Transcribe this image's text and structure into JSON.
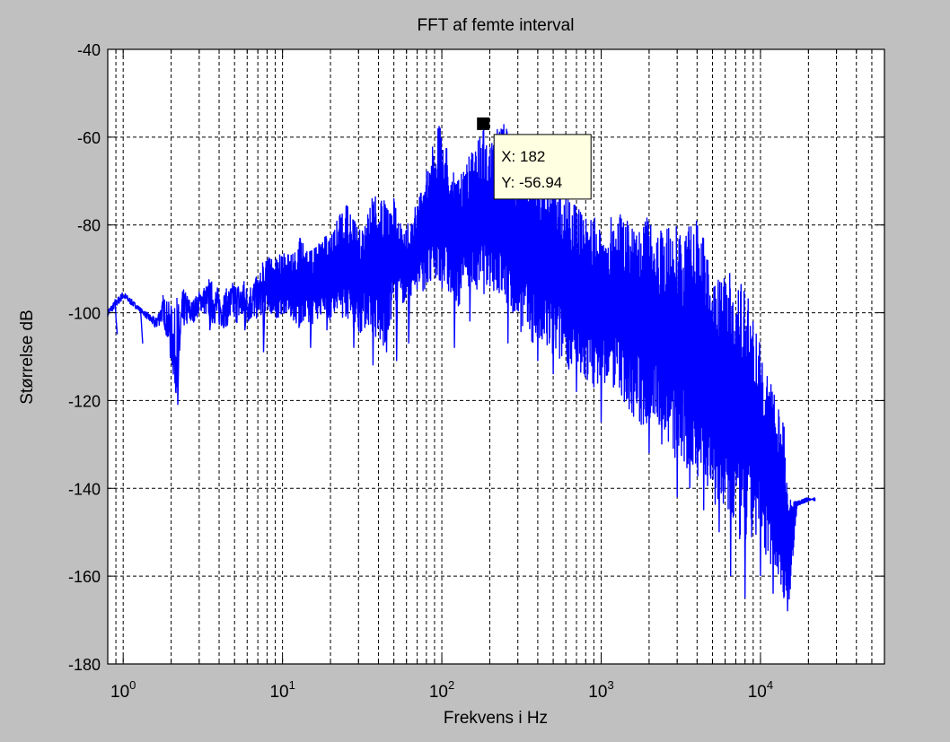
{
  "chart_data": {
    "type": "line",
    "title": "FFT af femte interval",
    "xlabel": "Frekvens i Hz",
    "ylabel": "Størrelse dB",
    "xscale": "log",
    "xlim": [
      0.8,
      60000
    ],
    "ylim": [
      -180,
      -40
    ],
    "grid": true,
    "line_color": "#0000ff",
    "x_ticks": [
      {
        "value": 1,
        "base": "10",
        "exp": "0"
      },
      {
        "value": 10,
        "base": "10",
        "exp": "1"
      },
      {
        "value": 100,
        "base": "10",
        "exp": "2"
      },
      {
        "value": 1000,
        "base": "10",
        "exp": "3"
      },
      {
        "value": 10000,
        "base": "10",
        "exp": "4"
      }
    ],
    "y_ticks": [
      -40,
      -60,
      -80,
      -100,
      -120,
      -140,
      -160,
      -180
    ],
    "series": [
      {
        "upper": [
          [
            0.8,
            -99
          ],
          [
            1.0,
            -95
          ],
          [
            1.3,
            -99
          ],
          [
            1.6,
            -101
          ],
          [
            1.8,
            -96
          ],
          [
            2.1,
            -98
          ],
          [
            2.4,
            -94
          ],
          [
            2.7,
            -97
          ],
          [
            3.1,
            -94
          ],
          [
            3.6,
            -92
          ],
          [
            4.2,
            -95
          ],
          [
            5.0,
            -92
          ],
          [
            6.0,
            -93
          ],
          [
            7.0,
            -91
          ],
          [
            8.0,
            -87
          ],
          [
            9.0,
            -88
          ],
          [
            10,
            -86
          ],
          [
            12,
            -86
          ],
          [
            13,
            -82
          ],
          [
            15,
            -86
          ],
          [
            18,
            -83
          ],
          [
            20,
            -82
          ],
          [
            25,
            -75
          ],
          [
            30,
            -81
          ],
          [
            35,
            -76
          ],
          [
            40,
            -71
          ],
          [
            45,
            -76
          ],
          [
            50,
            -74
          ],
          [
            58,
            -82
          ],
          [
            65,
            -78
          ],
          [
            75,
            -71
          ],
          [
            85,
            -63
          ],
          [
            95,
            -57
          ],
          [
            105,
            -60
          ],
          [
            115,
            -66
          ],
          [
            125,
            -70
          ],
          [
            140,
            -67
          ],
          [
            160,
            -62
          ],
          [
            182,
            -57
          ],
          [
            200,
            -62
          ],
          [
            240,
            -55
          ],
          [
            280,
            -62
          ],
          [
            330,
            -65
          ],
          [
            400,
            -67
          ],
          [
            500,
            -68
          ],
          [
            600,
            -72
          ],
          [
            700,
            -76
          ],
          [
            900,
            -78
          ],
          [
            1000,
            -82
          ],
          [
            1300,
            -75
          ],
          [
            1500,
            -80
          ],
          [
            1800,
            -76
          ],
          [
            2200,
            -82
          ],
          [
            2800,
            -80
          ],
          [
            3500,
            -81
          ],
          [
            4000,
            -78
          ],
          [
            4500,
            -84
          ],
          [
            5000,
            -93
          ],
          [
            6000,
            -92
          ],
          [
            7000,
            -90
          ],
          [
            8000,
            -95
          ],
          [
            9000,
            -98
          ],
          [
            10000,
            -108
          ],
          [
            11000,
            -112
          ],
          [
            12000,
            -118
          ],
          [
            14000,
            -125
          ],
          [
            15000,
            -142
          ],
          [
            17000,
            -143
          ],
          [
            20000,
            -142
          ],
          [
            22000,
            -143
          ]
        ],
        "lower": [
          [
            0.8,
            -101
          ],
          [
            1.0,
            -97
          ],
          [
            1.3,
            -100
          ],
          [
            1.6,
            -104
          ],
          [
            1.8,
            -102
          ],
          [
            2.1,
            -118
          ],
          [
            2.2,
            -121
          ],
          [
            2.4,
            -104
          ],
          [
            2.7,
            -103
          ],
          [
            3.1,
            -100
          ],
          [
            3.6,
            -103
          ],
          [
            4.2,
            -104
          ],
          [
            5.0,
            -103
          ],
          [
            6.0,
            -103
          ],
          [
            7.0,
            -102
          ],
          [
            8.0,
            -100
          ],
          [
            9.0,
            -103
          ],
          [
            10,
            -100
          ],
          [
            12,
            -102
          ],
          [
            13,
            -104
          ],
          [
            15,
            -103
          ],
          [
            18,
            -100
          ],
          [
            20,
            -102
          ],
          [
            25,
            -101
          ],
          [
            30,
            -105
          ],
          [
            35,
            -103
          ],
          [
            40,
            -108
          ],
          [
            45,
            -109
          ],
          [
            50,
            -97
          ],
          [
            58,
            -98
          ],
          [
            65,
            -96
          ],
          [
            75,
            -95
          ],
          [
            85,
            -95
          ],
          [
            95,
            -94
          ],
          [
            105,
            -95
          ],
          [
            115,
            -97
          ],
          [
            125,
            -100
          ],
          [
            140,
            -93
          ],
          [
            160,
            -96
          ],
          [
            182,
            -96
          ],
          [
            200,
            -94
          ],
          [
            240,
            -98
          ],
          [
            280,
            -101
          ],
          [
            330,
            -106
          ],
          [
            400,
            -108
          ],
          [
            500,
            -111
          ],
          [
            600,
            -112
          ],
          [
            700,
            -115
          ],
          [
            900,
            -117
          ],
          [
            1000,
            -116
          ],
          [
            1300,
            -118
          ],
          [
            1500,
            -123
          ],
          [
            1800,
            -127
          ],
          [
            2200,
            -124
          ],
          [
            2800,
            -133
          ],
          [
            3500,
            -138
          ],
          [
            4000,
            -137
          ],
          [
            4500,
            -140
          ],
          [
            5000,
            -143
          ],
          [
            6000,
            -148
          ],
          [
            7000,
            -151
          ],
          [
            8000,
            -155
          ],
          [
            9000,
            -152
          ],
          [
            10000,
            -153
          ],
          [
            11000,
            -156
          ],
          [
            12000,
            -158
          ],
          [
            14000,
            -165
          ],
          [
            15000,
            -168
          ],
          [
            17000,
            -144
          ],
          [
            20000,
            -143
          ],
          [
            22000,
            -142
          ]
        ],
        "spikes": [
          [
            0.9,
            -101
          ],
          [
            1.3,
            -102
          ],
          [
            1.8,
            -102
          ],
          [
            2.2,
            -121
          ],
          [
            3.5,
            -104
          ],
          [
            5.8,
            -104
          ],
          [
            7.6,
            -109
          ],
          [
            15,
            -108
          ],
          [
            19,
            -104
          ],
          [
            28,
            -108
          ],
          [
            37,
            -112
          ],
          [
            45,
            -109
          ],
          [
            52,
            -111
          ],
          [
            62,
            -107
          ],
          [
            120,
            -108
          ],
          [
            150,
            -102
          ],
          [
            260,
            -107
          ],
          [
            400,
            -111
          ],
          [
            500,
            -114
          ],
          [
            700,
            -118
          ],
          [
            1000,
            -125
          ],
          [
            1500,
            -122
          ],
          [
            2000,
            -132
          ],
          [
            2400,
            -130
          ],
          [
            3000,
            -142
          ],
          [
            3600,
            -140
          ],
          [
            4400,
            -145
          ],
          [
            5500,
            -150
          ],
          [
            6500,
            -160
          ],
          [
            8000,
            -165
          ],
          [
            10000,
            -160
          ],
          [
            12000,
            -164
          ],
          [
            14000,
            -165
          ],
          [
            14800,
            -168
          ]
        ]
      }
    ],
    "datatip": {
      "x_label": "X: 182",
      "y_label": "Y: -56.94",
      "x": 182,
      "y": -56.94
    }
  }
}
